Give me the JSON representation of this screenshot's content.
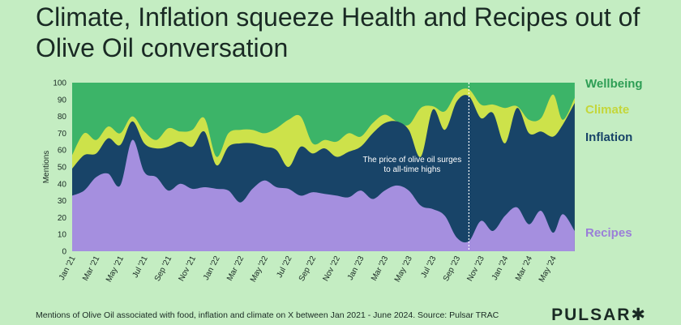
{
  "title": "Climate, Inflation squeeze Health and Recipes out of Olive Oil conversation",
  "source": "Mentions of Olive Oil associated with food, inflation and climate on X between Jan 2021 - June 2024. Source: Pulsar TRAC",
  "brand": "PULSAR✱",
  "colors": {
    "background": "#c4edc2",
    "Recipes": "#a58fdf",
    "Inflation": "#184468",
    "Climate": "#cde24a",
    "Wellbeing": "#3cb468"
  },
  "chart_data": {
    "type": "area",
    "stacked": true,
    "ylabel": "Mentions",
    "xlabel": "",
    "ylim": [
      0,
      100
    ],
    "yticks": [
      0,
      10,
      20,
      30,
      40,
      50,
      60,
      70,
      80,
      90,
      100
    ],
    "xticks": [
      "Jan '21",
      "Mar '21",
      "May '21",
      "Jul '21",
      "Sep '21",
      "Nov '21",
      "Jan '22",
      "Mar '22",
      "May '22",
      "Jul '22",
      "Sep '22",
      "Nov '22",
      "Jan '23",
      "Mar '23",
      "May '23",
      "Jul '23",
      "Sep '23",
      "Nov '23",
      "Jan '24",
      "Mar '24",
      "May '24"
    ],
    "series_order": [
      "Recipes",
      "Inflation",
      "Climate",
      "Wellbeing"
    ],
    "x_span_months": [
      0,
      41.8
    ],
    "series": [
      {
        "name": "Recipes",
        "points": [
          [
            0,
            33
          ],
          [
            1,
            36
          ],
          [
            2,
            44
          ],
          [
            3,
            46
          ],
          [
            4,
            39
          ],
          [
            5,
            66
          ],
          [
            6,
            47
          ],
          [
            7,
            44
          ],
          [
            8,
            36
          ],
          [
            9,
            40
          ],
          [
            10,
            37
          ],
          [
            11,
            38
          ],
          [
            12,
            37
          ],
          [
            13,
            36
          ],
          [
            14,
            29
          ],
          [
            15,
            37
          ],
          [
            16,
            42
          ],
          [
            17,
            38
          ],
          [
            18,
            37
          ],
          [
            19,
            33
          ],
          [
            20,
            35
          ],
          [
            21,
            34
          ],
          [
            22,
            33
          ],
          [
            23,
            32
          ],
          [
            24,
            36
          ],
          [
            25,
            31
          ],
          [
            26,
            36
          ],
          [
            27,
            39
          ],
          [
            28,
            36
          ],
          [
            29,
            27
          ],
          [
            30,
            25
          ],
          [
            31,
            21
          ],
          [
            32,
            8
          ],
          [
            33,
            6
          ],
          [
            34,
            18
          ],
          [
            35,
            12
          ],
          [
            36,
            21
          ],
          [
            37,
            26
          ],
          [
            38,
            16
          ],
          [
            39,
            24
          ],
          [
            40,
            11
          ],
          [
            40.8,
            22
          ],
          [
            41.8,
            12
          ]
        ]
      },
      {
        "name": "Inflation",
        "points": [
          [
            0,
            49
          ],
          [
            1,
            57
          ],
          [
            2,
            58
          ],
          [
            3,
            67
          ],
          [
            4,
            63
          ],
          [
            5,
            77
          ],
          [
            6,
            64
          ],
          [
            7,
            61
          ],
          [
            8,
            62
          ],
          [
            9,
            65
          ],
          [
            10,
            62
          ],
          [
            11,
            71
          ],
          [
            12,
            51
          ],
          [
            13,
            62
          ],
          [
            14,
            64
          ],
          [
            15,
            64
          ],
          [
            16,
            62
          ],
          [
            17,
            60
          ],
          [
            18,
            50
          ],
          [
            19,
            62
          ],
          [
            20,
            58
          ],
          [
            21,
            61
          ],
          [
            22,
            56
          ],
          [
            23,
            59
          ],
          [
            24,
            62
          ],
          [
            25,
            70
          ],
          [
            26,
            76
          ],
          [
            27,
            77
          ],
          [
            28,
            72
          ],
          [
            29,
            56
          ],
          [
            30,
            84
          ],
          [
            31,
            72
          ],
          [
            32,
            89
          ],
          [
            33,
            92
          ],
          [
            34,
            79
          ],
          [
            35,
            82
          ],
          [
            36,
            64
          ],
          [
            37,
            85
          ],
          [
            38,
            70
          ],
          [
            39,
            71
          ],
          [
            40,
            68
          ],
          [
            40.8,
            75
          ],
          [
            41.8,
            88
          ]
        ]
      },
      {
        "name": "Climate",
        "points": [
          [
            0,
            57
          ],
          [
            1,
            70
          ],
          [
            2,
            66
          ],
          [
            3,
            74
          ],
          [
            4,
            70
          ],
          [
            5,
            80
          ],
          [
            6,
            71
          ],
          [
            7,
            66
          ],
          [
            8,
            73
          ],
          [
            9,
            71
          ],
          [
            10,
            72
          ],
          [
            11,
            79
          ],
          [
            12,
            56
          ],
          [
            13,
            70
          ],
          [
            14,
            72
          ],
          [
            15,
            72
          ],
          [
            16,
            70
          ],
          [
            17,
            73
          ],
          [
            18,
            78
          ],
          [
            19,
            80
          ],
          [
            20,
            64
          ],
          [
            21,
            66
          ],
          [
            22,
            65
          ],
          [
            23,
            70
          ],
          [
            24,
            68
          ],
          [
            25,
            76
          ],
          [
            26,
            81
          ],
          [
            27,
            77
          ],
          [
            28,
            75
          ],
          [
            29,
            85
          ],
          [
            30,
            86
          ],
          [
            31,
            83
          ],
          [
            32,
            94
          ],
          [
            33,
            96
          ],
          [
            34,
            87
          ],
          [
            35,
            87
          ],
          [
            36,
            85
          ],
          [
            37,
            86
          ],
          [
            38,
            78
          ],
          [
            39,
            79
          ],
          [
            40,
            93
          ],
          [
            40.8,
            78
          ],
          [
            41.8,
            91
          ]
        ]
      },
      {
        "name": "Wellbeing",
        "points": [
          [
            0,
            100
          ],
          [
            41.8,
            100
          ]
        ]
      }
    ],
    "annotations": [
      {
        "x": 33,
        "line1": "The price of olive oil surges",
        "line2": "to all-time highs"
      }
    ]
  }
}
